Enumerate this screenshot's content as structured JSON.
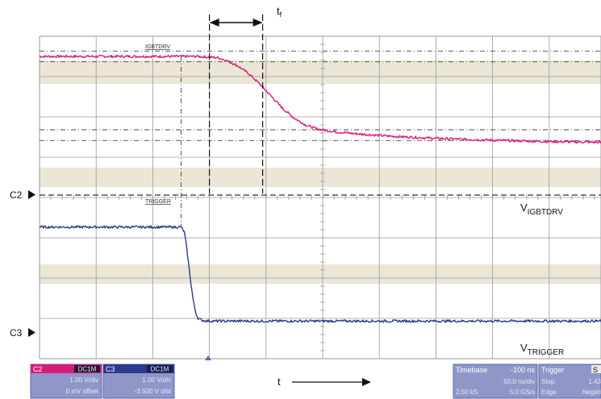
{
  "chart_data": {
    "type": "line",
    "x_unit": "ns",
    "x_divisions": 10,
    "y_divisions": 8,
    "series": [
      {
        "name": "IGBTDRV",
        "channel": "C2",
        "color": "#d81b7a",
        "x": [
          -250,
          -110,
          -92,
          -85,
          -75,
          -65,
          -55,
          -45,
          -35,
          -25,
          -15,
          -5,
          10,
          30,
          60,
          100,
          150,
          200,
          250
        ],
        "y": [
          3.25,
          3.25,
          3.2,
          3.1,
          2.9,
          2.6,
          2.2,
          1.75,
          1.3,
          0.95,
          0.7,
          0.55,
          0.45,
          0.37,
          0.28,
          0.2,
          0.13,
          0.08,
          0.05
        ]
      },
      {
        "name": "TRIGGER",
        "channel": "C3",
        "color": "#2b3a8c",
        "x": [
          -250,
          -125,
          -122,
          -120,
          -118,
          -116,
          -114,
          -112,
          -110,
          -106,
          -100,
          0,
          250
        ],
        "y": [
          -3.1,
          -3.1,
          -3.3,
          -3.9,
          -4.6,
          -5.3,
          -5.9,
          -6.3,
          -6.5,
          -6.58,
          -6.6,
          -6.6,
          -6.6
        ]
      }
    ],
    "markers": {
      "v_dashed_x": [
        -100,
        -53
      ],
      "h_dashdot_y": [
        3.45,
        3.05,
        0.52,
        0.12
      ]
    }
  },
  "labels": {
    "tf_main": "t",
    "tf_sub": "f",
    "c2": "C2",
    "c3": "C3",
    "v_igbt_main": "V",
    "v_igbt_sub": "IGBTDRV",
    "v_trig_main": "V",
    "v_trig_sub": "TRIGGER",
    "time": "t",
    "trace_igbt": "IGBTDRV",
    "trace_trig": "TRIGGER"
  },
  "panels": {
    "c2": {
      "title": "C2",
      "tag": "DC1M",
      "line1": "1.00 V/div",
      "line2": "0 mV offset",
      "color": "#d81b7a"
    },
    "c3": {
      "title": "C3",
      "tag": "DC1M",
      "line1": "1.00 V/div",
      "line2": "-3.500 V ofst",
      "color": "#2b3a8c"
    },
    "timebase": {
      "title": "Timebase",
      "value": "-100 ns",
      "line1": "50.0 ns/div",
      "line2_a": "2.50 kS",
      "line2_b": "5.0 GS/s"
    },
    "trigger": {
      "title": "Trigger",
      "cut": "S",
      "line1_a": "Stop",
      "line1_b": "1.43",
      "line2_a": "Edge",
      "line2_b": "Negati"
    }
  },
  "colors": {
    "grid": "#9a9a9a",
    "band": "#e8e2cf",
    "panel_bg": "#7a86c2"
  }
}
